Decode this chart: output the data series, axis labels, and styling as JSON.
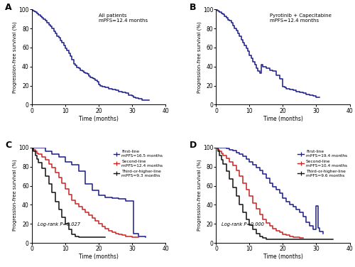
{
  "annotation_A": "All patients\nmPFS=12.4 months",
  "annotation_B": "Pyrotinib + Capecitabine\nmPFS=12.4 months",
  "xlabel": "Time (months)",
  "ylabel": "Progression-free survival (%)",
  "xlim": [
    0,
    40
  ],
  "ylim": [
    0,
    100
  ],
  "xticks": [
    0,
    10,
    20,
    30,
    40
  ],
  "yticks": [
    0,
    20,
    40,
    60,
    80,
    100
  ],
  "navy": "#1a1a8c",
  "red": "#cc2222",
  "black": "#111111",
  "logrank_C": "Log-rank P=0.027",
  "logrank_D": "Log-rank P=0.000",
  "legend_C_1": "First-line",
  "legend_C_1b": "mPFS=16.5 months",
  "legend_C_2": "Second-line",
  "legend_C_2b": "mPFS=12.4 months",
  "legend_C_3": "Third-or-higher-line",
  "legend_C_3b": "mPFS=9.3 months",
  "legend_D_1": "First-line",
  "legend_D_1b": "mPFS=19.4 months",
  "legend_D_2": "Second-line",
  "legend_D_2b": "mPFS=10.4 months",
  "legend_D_3": "Third-or-higher-line",
  "legend_D_3b": "mPFS=9.6 months"
}
